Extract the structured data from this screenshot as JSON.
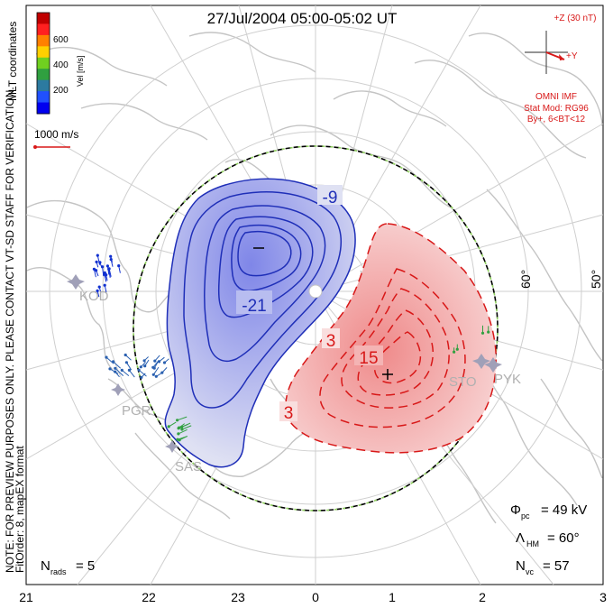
{
  "title": "27/Jul/2004 05:00-05:02 UT",
  "colorbar": {
    "label": "Vel [m/s]",
    "ticks": [
      "600",
      "400",
      "200"
    ],
    "colors": [
      "#c00000",
      "#ff2020",
      "#ff8000",
      "#ffd000",
      "#70d020",
      "#30a040",
      "#2c7aa0",
      "#2050ff",
      "#0000f0"
    ]
  },
  "left_side": {
    "coords": "MLT coordinates",
    "note": "NOTE: FOR PREVIEW PURPOSES ONLY. PLEASE CONTACT VT-SD STAFF FOR VERIFICATION.",
    "fit": "FitOrder: 8, mapEX format"
  },
  "vector_scale": "1000 m/s",
  "imf": {
    "plus_z": "+Z (30 nT)",
    "plus_y": "+Y",
    "source": "OMNI IMF",
    "stat_mod": "Stat Mod: RG96",
    "condition": "By+, 6<BT<12"
  },
  "latitude_labels": [
    "60°",
    "50°"
  ],
  "contours": {
    "negative_labels": [
      "-9",
      "-21"
    ],
    "positive_labels": [
      "3",
      "15",
      "3"
    ],
    "min_marker": "–",
    "max_marker": "+"
  },
  "stations": [
    "KOD",
    "PGR",
    "SAS",
    "STO",
    "PYK"
  ],
  "stats": {
    "phi_pc_symbol": "Φ",
    "phi_pc_sub": "pc",
    "phi_pc_value": "= 49 kV",
    "lambda_symbol": "Λ",
    "lambda_sub": "HM",
    "lambda_value": "= 60°",
    "nvc_symbol": "N",
    "nvc_sub": "vc",
    "nvc_value": "= 57",
    "nrads_symbol": "N",
    "nrads_sub": "rads",
    "nrads_value": "= 5"
  },
  "mlt_ticks": [
    "21",
    "22",
    "23",
    "0",
    "1",
    "2",
    "3"
  ],
  "colors": {
    "negative": "#1f2fb8",
    "positive": "#d81818",
    "coastline": "#c4c4c4",
    "hmb_dash": "#90d060"
  }
}
